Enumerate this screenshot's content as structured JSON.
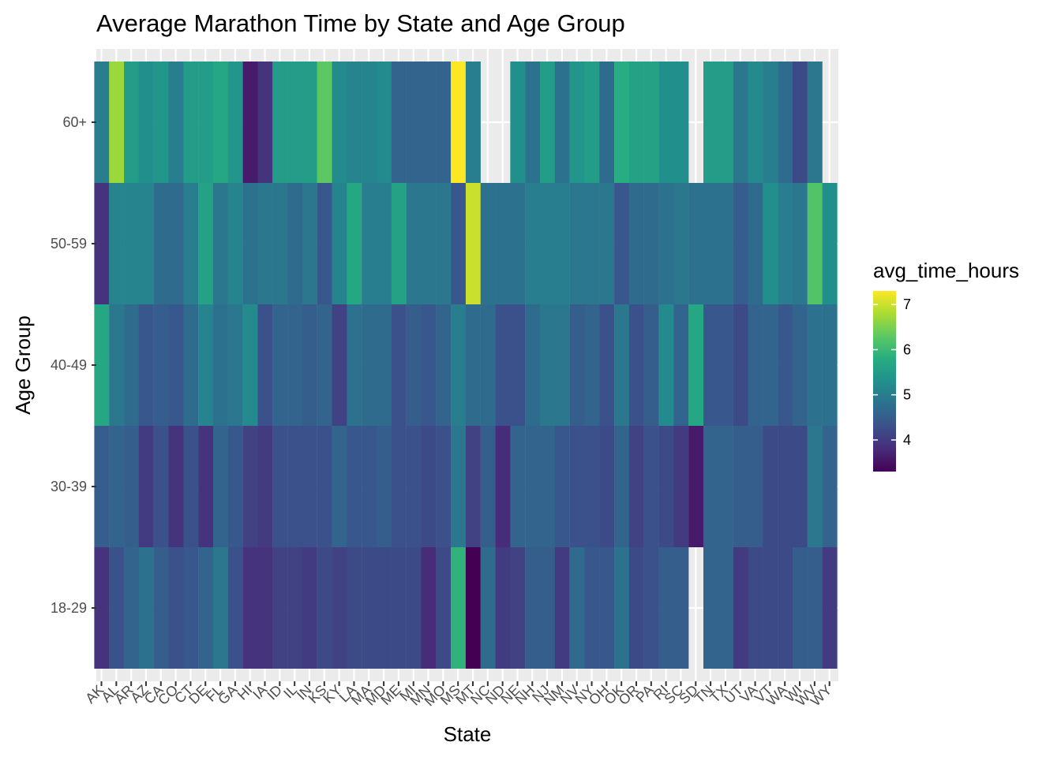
{
  "chart_data": {
    "type": "heatmap",
    "title": "Average Marathon Time by State and Age Group",
    "xlabel": "State",
    "ylabel": "Age Group",
    "x_categories": [
      "AK",
      "AL",
      "AR",
      "AZ",
      "CA",
      "CO",
      "CT",
      "DE",
      "FL",
      "GA",
      "HI",
      "IA",
      "ID",
      "IL",
      "IN",
      "KS",
      "KY",
      "LA",
      "MA",
      "MD",
      "ME",
      "MI",
      "MN",
      "MO",
      "MS",
      "MT",
      "NC",
      "ND",
      "NE",
      "NH",
      "NJ",
      "NM",
      "NV",
      "NY",
      "OH",
      "OK",
      "OR",
      "PA",
      "RI",
      "SC",
      "SD",
      "TN",
      "TX",
      "UT",
      "VA",
      "VT",
      "WA",
      "WI",
      "WV",
      "WY"
    ],
    "y_categories": [
      "18-29",
      "30-39",
      "40-49",
      "50-59",
      "60+"
    ],
    "legend_title": "avg_time_hours",
    "legend_ticks": [
      4,
      5,
      6,
      7
    ],
    "legend_range": [
      3.3,
      7.3
    ],
    "legend_position": "right",
    "color_scale": "viridis",
    "grid": true,
    "panel_background": "#EBEBEB",
    "notes": "Tiles are drawn centered at irregular x positions and some rows overlap/leave gaps, so a few state/age combinations are hidden by neighbouring tiles or absent (e.g. SD in 18-29).",
    "series": [
      {
        "name": "18-29",
        "x": [
          "AK",
          "AL",
          "AR",
          "AZ",
          "CA",
          "CO",
          "CT",
          "DE",
          "FL",
          "GA",
          "HI",
          "IA",
          "ID",
          "IL",
          "IN",
          "KS",
          "KY",
          "LA",
          "MA",
          "MD",
          "ME",
          "MI",
          "MN",
          "MO",
          "MS",
          "MT",
          "NC",
          "ND",
          "NE",
          "NH",
          "NJ",
          "NM",
          "NV",
          "NY",
          "OH",
          "OK",
          "OR",
          "PA",
          "RI",
          "SC",
          "TN",
          "TX",
          "UT",
          "VA",
          "VT",
          "WA",
          "WI",
          "WV",
          "WY"
        ],
        "values": [
          3.9,
          4.3,
          4.6,
          4.8,
          4.5,
          4.3,
          4.4,
          4.6,
          4.9,
          4.3,
          3.9,
          3.9,
          4.1,
          4.1,
          4.0,
          4.2,
          4.1,
          4.2,
          4.2,
          4.2,
          4.2,
          4.2,
          3.8,
          4.2,
          5.9,
          3.3,
          4.7,
          4.0,
          4.1,
          4.5,
          4.5,
          4.0,
          4.7,
          4.4,
          4.4,
          4.8,
          4.2,
          4.3,
          4.5,
          4.5,
          4.6,
          4.6,
          4.0,
          4.2,
          4.2,
          4.2,
          4.5,
          4.5,
          4.0
        ]
      },
      {
        "name": "30-39",
        "x": [
          "AK",
          "AL",
          "AR",
          "AZ",
          "CA",
          "CO",
          "CT",
          "DE",
          "FL",
          "GA",
          "HI",
          "IA",
          "ID",
          "IL",
          "IN",
          "KS",
          "KY",
          "LA",
          "MA",
          "MD",
          "ME",
          "MI",
          "MN",
          "MO",
          "MS",
          "MT",
          "NC",
          "ND",
          "NE",
          "NH",
          "NJ",
          "NM",
          "NV",
          "NY",
          "OH",
          "OK",
          "OR",
          "PA",
          "RI",
          "SC",
          "SD",
          "TN",
          "TX",
          "UT",
          "VA",
          "VT",
          "WA",
          "WI",
          "WV",
          "WY"
        ],
        "values": [
          4.5,
          4.6,
          4.5,
          4.0,
          4.3,
          3.9,
          4.3,
          3.9,
          4.6,
          4.4,
          4.1,
          4.0,
          4.3,
          4.3,
          4.3,
          4.3,
          4.6,
          4.4,
          4.4,
          4.5,
          4.3,
          4.3,
          4.2,
          4.3,
          4.9,
          4.1,
          4.5,
          3.8,
          4.6,
          4.6,
          4.6,
          4.4,
          4.3,
          4.3,
          4.2,
          4.6,
          4.1,
          4.3,
          4.2,
          4.0,
          3.6,
          4.6,
          4.6,
          4.5,
          4.5,
          4.2,
          4.2,
          4.2,
          4.9,
          4.6
        ]
      },
      {
        "name": "40-49",
        "x": [
          "AK",
          "AL",
          "AR",
          "AZ",
          "CA",
          "CO",
          "CT",
          "DE",
          "FL",
          "GA",
          "HI",
          "IA",
          "ID",
          "IL",
          "IN",
          "KS",
          "KY",
          "LA",
          "MA",
          "MD",
          "ME",
          "MI",
          "MN",
          "MO",
          "MS",
          "MT",
          "NC",
          "ND",
          "NE",
          "NH",
          "NJ",
          "NM",
          "NV",
          "NY",
          "OH",
          "OK",
          "OR",
          "PA",
          "RI",
          "SC",
          "SD",
          "TN",
          "TX",
          "UT",
          "VA",
          "VT",
          "WA",
          "WI",
          "WV",
          "WY"
        ],
        "values": [
          5.7,
          4.9,
          4.7,
          4.4,
          4.5,
          4.4,
          4.7,
          5.1,
          4.8,
          4.9,
          5.2,
          4.3,
          4.6,
          4.6,
          4.5,
          4.6,
          4.1,
          4.8,
          4.7,
          4.7,
          4.3,
          4.5,
          4.4,
          4.6,
          5.0,
          4.7,
          4.7,
          4.3,
          4.3,
          4.7,
          4.9,
          4.9,
          4.5,
          4.6,
          4.3,
          4.9,
          4.3,
          4.5,
          5.2,
          4.6,
          5.7,
          4.4,
          4.4,
          4.2,
          4.6,
          4.6,
          4.4,
          4.6,
          4.8,
          4.8
        ]
      },
      {
        "name": "50-59",
        "x": [
          "AK",
          "AL",
          "AR",
          "AZ",
          "CA",
          "CO",
          "CT",
          "DE",
          "FL",
          "GA",
          "HI",
          "IA",
          "ID",
          "IL",
          "IN",
          "KS",
          "KY",
          "LA",
          "MA",
          "MD",
          "ME",
          "MI",
          "MN",
          "MO",
          "MS",
          "MT",
          "NC",
          "ND",
          "NE",
          "NH",
          "NJ",
          "NM",
          "NV",
          "NY",
          "OH",
          "OK",
          "OR",
          "PA",
          "RI",
          "SC",
          "SD",
          "TN",
          "TX",
          "UT",
          "VA",
          "VT",
          "WA",
          "WI",
          "WV",
          "WY"
        ],
        "values": [
          3.9,
          5.1,
          5.1,
          5.1,
          4.7,
          4.7,
          5.0,
          5.6,
          4.9,
          5.1,
          4.8,
          4.9,
          4.9,
          4.7,
          4.9,
          4.4,
          5.1,
          5.7,
          5.0,
          5.0,
          5.6,
          4.9,
          4.9,
          4.9,
          4.4,
          7.0,
          4.8,
          4.8,
          4.8,
          5.0,
          5.0,
          5.0,
          4.9,
          4.9,
          4.9,
          4.4,
          4.7,
          4.7,
          4.8,
          4.9,
          4.8,
          4.8,
          4.8,
          4.5,
          4.7,
          5.3,
          5.0,
          4.9,
          6.2,
          5.3
        ]
      },
      {
        "name": "60+",
        "x": [
          "AK",
          "AL",
          "AR",
          "AZ",
          "CA",
          "CO",
          "CT",
          "DE",
          "FL",
          "GA",
          "HI",
          "IA",
          "ID",
          "IL",
          "IN",
          "KS",
          "KY",
          "LA",
          "MA",
          "MD",
          "ME",
          "MI",
          "MN",
          "MO",
          "MS",
          "MT",
          "NE",
          "NH",
          "NJ",
          "NM",
          "NV",
          "NY",
          "OH",
          "OK",
          "OR",
          "PA",
          "RI",
          "SC",
          "TN",
          "TX",
          "UT",
          "VA",
          "VT",
          "WA",
          "WI",
          "WV"
        ],
        "values": [
          5.0,
          6.7,
          5.5,
          5.3,
          5.4,
          5.0,
          5.5,
          5.5,
          5.7,
          5.4,
          3.6,
          3.9,
          5.5,
          5.5,
          5.5,
          6.3,
          5.2,
          5.1,
          5.1,
          5.2,
          4.6,
          4.6,
          4.6,
          4.6,
          7.3,
          5.0,
          5.3,
          4.8,
          5.5,
          4.8,
          5.4,
          5.5,
          4.7,
          5.8,
          5.6,
          5.6,
          5.3,
          5.3,
          5.5,
          5.5,
          4.9,
          5.2,
          5.0,
          4.7,
          4.2,
          4.9
        ]
      }
    ]
  }
}
